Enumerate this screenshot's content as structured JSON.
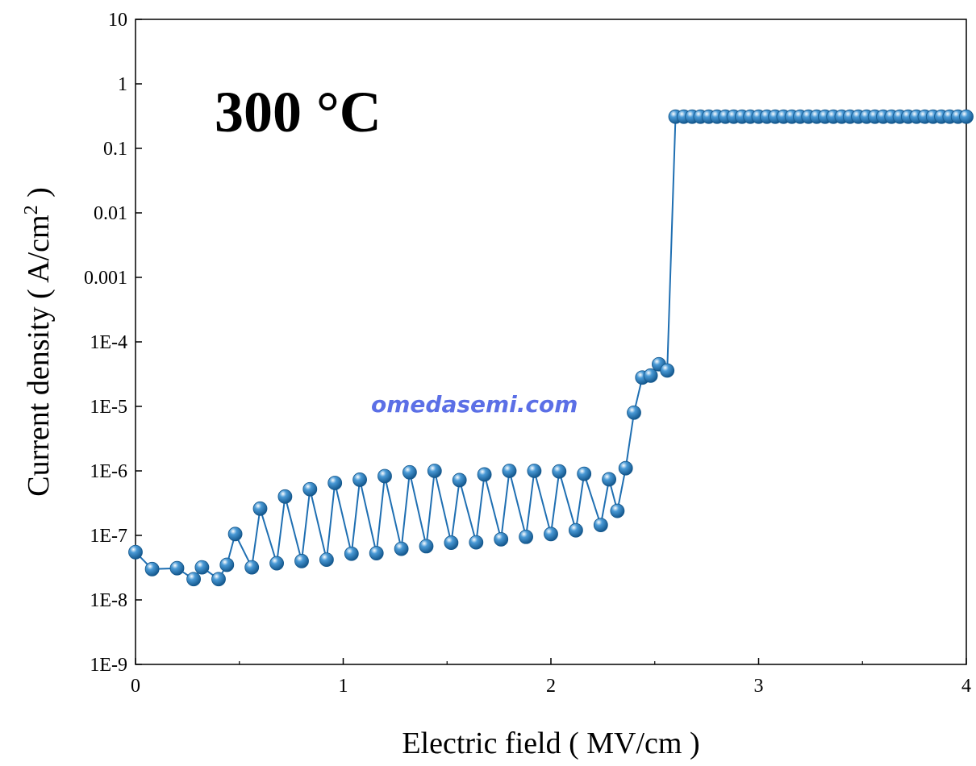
{
  "chart_data": {
    "type": "scatter",
    "title": "",
    "annotation": "300 °C",
    "watermark": "omedasemi.com",
    "xlabel": "Electric field ( MV/cm )",
    "ylabel_main": "Current density ( A/cm",
    "ylabel_sup": "2",
    "ylabel_close": " )",
    "xlim": [
      0,
      4
    ],
    "ylim": [
      1e-09,
      10
    ],
    "yscale": "log",
    "grid": false,
    "legend": "none",
    "x_ticks": [
      0,
      1,
      2,
      3,
      4
    ],
    "x_tick_labels": [
      "0",
      "1",
      "2",
      "3",
      "4"
    ],
    "y_ticks": [
      1e-09,
      1e-08,
      1e-07,
      1e-06,
      1e-05,
      0.0001,
      0.001,
      0.01,
      0.1,
      1,
      10
    ],
    "y_tick_labels": [
      "1E-9",
      "1E-8",
      "1E-7",
      "1E-6",
      "1E-5",
      "1E-4",
      "0.001",
      "0.01",
      "0.1",
      "1",
      "10"
    ],
    "colors": {
      "series": "#1f6fb2",
      "marker": "#2b7fc0",
      "highlight": "#ffffff"
    },
    "series": [
      {
        "x": [
          0.0,
          0.08,
          0.2,
          0.28,
          0.32,
          0.4,
          0.44,
          0.48,
          0.56,
          0.6,
          0.68,
          0.72,
          0.8,
          0.84,
          0.92,
          0.96,
          1.04,
          1.08,
          1.16,
          1.2,
          1.28,
          1.32,
          1.4,
          1.44,
          1.52,
          1.56,
          1.64,
          1.68,
          1.76,
          1.8,
          1.88,
          1.92,
          2.0,
          2.04,
          2.12,
          2.16,
          2.24,
          2.28,
          2.32,
          2.36,
          2.4,
          2.44,
          2.48,
          2.52,
          2.56,
          2.6,
          2.64,
          2.68,
          2.72,
          2.76,
          2.8,
          2.84,
          2.88,
          2.92,
          2.96,
          3.0,
          3.04,
          3.08,
          3.12,
          3.16,
          3.2,
          3.24,
          3.28,
          3.32,
          3.36,
          3.4,
          3.44,
          3.48,
          3.52,
          3.56,
          3.6,
          3.64,
          3.68,
          3.72,
          3.76,
          3.8,
          3.84,
          3.88,
          3.92,
          3.96,
          4.0
        ],
        "y": [
          5.5e-08,
          3e-08,
          3.1e-08,
          2.1e-08,
          3.2e-08,
          2.1e-08,
          3.5e-08,
          1.05e-07,
          3.2e-08,
          2.6e-07,
          3.7e-08,
          4e-07,
          4e-08,
          5.2e-07,
          4.2e-08,
          6.5e-07,
          5.2e-08,
          7.3e-07,
          5.3e-08,
          8.3e-07,
          6.2e-08,
          9.5e-07,
          6.8e-08,
          1e-06,
          7.7e-08,
          7.2e-07,
          7.8e-08,
          8.8e-07,
          8.7e-08,
          1e-06,
          9.5e-08,
          1e-06,
          1.05e-07,
          9.8e-07,
          1.2e-07,
          9e-07,
          1.45e-07,
          7.4e-07,
          2.4e-07,
          1.1e-06,
          8e-06,
          2.8e-05,
          3e-05,
          4.5e-05,
          3.6e-05,
          0.31,
          0.31,
          0.31,
          0.31,
          0.31,
          0.31,
          0.31,
          0.31,
          0.31,
          0.31,
          0.31,
          0.31,
          0.31,
          0.31,
          0.31,
          0.31,
          0.31,
          0.31,
          0.31,
          0.31,
          0.31,
          0.31,
          0.31,
          0.31,
          0.31,
          0.31,
          0.31,
          0.31,
          0.31,
          0.31,
          0.31,
          0.31,
          0.31,
          0.31,
          0.31,
          0.31
        ]
      }
    ]
  }
}
